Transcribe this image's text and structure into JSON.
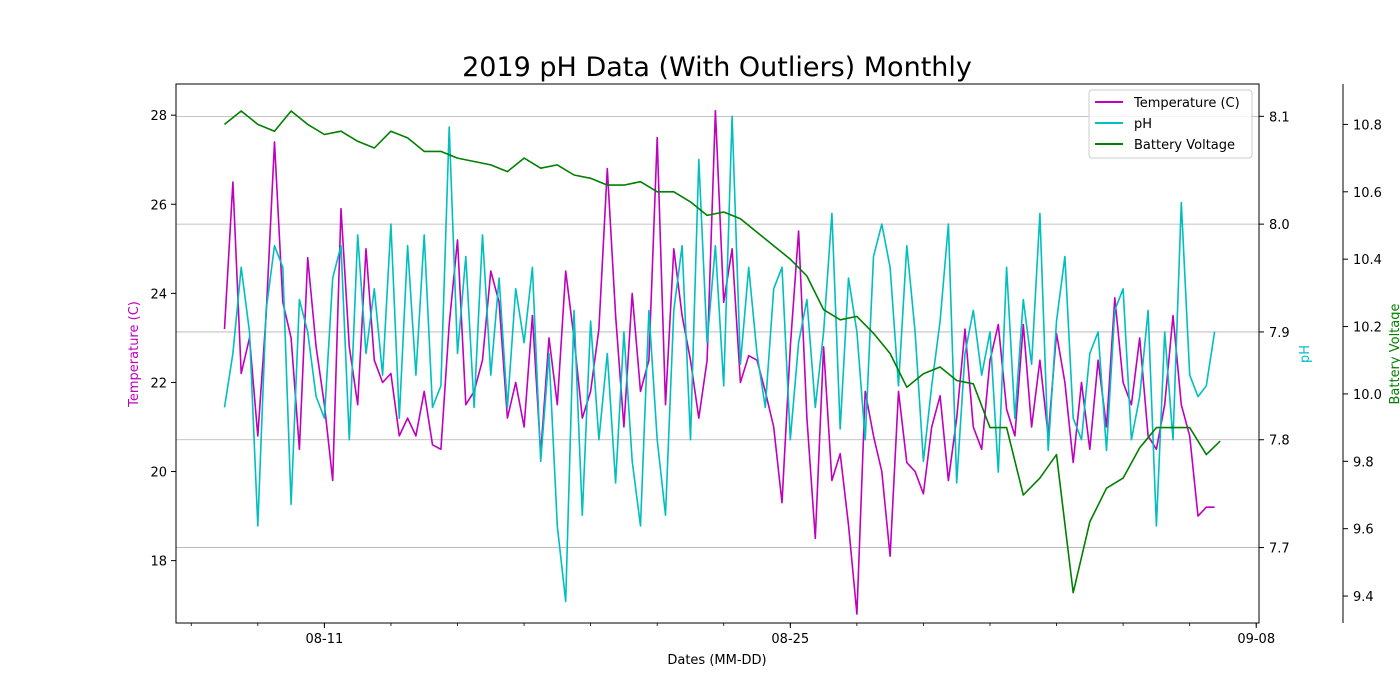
{
  "chart_data": {
    "type": "line",
    "title": "2019 pH Data (With Outliers) Monthly",
    "xlabel": "Dates (MM-DD)",
    "ylabel_left": "Temperature (C)",
    "ylabel_right": "pH",
    "ylabel_right2": "Battery Voltage",
    "xlim": [
      "2019-08-06T13:00",
      "2019-09-08T02:00"
    ],
    "ylim_temperature": [
      16.6,
      28.7
    ],
    "ylim_ph": [
      7.63,
      8.13
    ],
    "ylim_battery": [
      9.32,
      10.92
    ],
    "x_ticks": [
      {
        "x": "2019-08-11",
        "label": "08-11"
      },
      {
        "x": "2019-08-25",
        "label": "08-25"
      },
      {
        "x": "2019-09-08",
        "label": "09-08"
      }
    ],
    "y_ticks_temperature": [
      18,
      20,
      22,
      24,
      26,
      28
    ],
    "y_ticks_ph": [
      7.7,
      7.8,
      7.9,
      8.0,
      8.1
    ],
    "y_ticks_battery": [
      9.4,
      9.6,
      9.8,
      10.0,
      10.2,
      10.4,
      10.6,
      10.8
    ],
    "grid": "horizontal",
    "legend_placement": "upper right",
    "series": [
      {
        "name": "Temperature (C)",
        "axis": "temperature",
        "color": "#bf00bf",
        "x": [
          "2019-08-08T00:00",
          "2019-08-08T06:00",
          "2019-08-08T12:00",
          "2019-08-08T18:00",
          "2019-08-09T00:00",
          "2019-08-09T06:00",
          "2019-08-09T12:00",
          "2019-08-09T18:00",
          "2019-08-10T00:00",
          "2019-08-10T06:00",
          "2019-08-10T12:00",
          "2019-08-10T18:00",
          "2019-08-11T00:00",
          "2019-08-11T06:00",
          "2019-08-11T12:00",
          "2019-08-11T18:00",
          "2019-08-12T00:00",
          "2019-08-12T06:00",
          "2019-08-12T12:00",
          "2019-08-12T18:00",
          "2019-08-13T00:00",
          "2019-08-13T06:00",
          "2019-08-13T12:00",
          "2019-08-13T18:00",
          "2019-08-14T00:00",
          "2019-08-14T06:00",
          "2019-08-14T12:00",
          "2019-08-14T18:00",
          "2019-08-15T00:00",
          "2019-08-15T06:00",
          "2019-08-15T12:00",
          "2019-08-15T18:00",
          "2019-08-16T00:00",
          "2019-08-16T06:00",
          "2019-08-16T12:00",
          "2019-08-16T18:00",
          "2019-08-17T00:00",
          "2019-08-17T06:00",
          "2019-08-17T12:00",
          "2019-08-17T18:00",
          "2019-08-18T00:00",
          "2019-08-18T06:00",
          "2019-08-18T12:00",
          "2019-08-18T18:00",
          "2019-08-19T00:00",
          "2019-08-19T06:00",
          "2019-08-19T12:00",
          "2019-08-19T18:00",
          "2019-08-20T00:00",
          "2019-08-20T06:00",
          "2019-08-20T12:00",
          "2019-08-20T18:00",
          "2019-08-21T00:00",
          "2019-08-21T06:00",
          "2019-08-21T12:00",
          "2019-08-21T18:00",
          "2019-08-22T00:00",
          "2019-08-22T06:00",
          "2019-08-22T12:00",
          "2019-08-22T18:00",
          "2019-08-23T00:00",
          "2019-08-23T06:00",
          "2019-08-23T12:00",
          "2019-08-23T18:00",
          "2019-08-24T00:00",
          "2019-08-24T06:00",
          "2019-08-24T12:00",
          "2019-08-24T18:00",
          "2019-08-25T00:00",
          "2019-08-25T06:00",
          "2019-08-25T12:00",
          "2019-08-25T18:00",
          "2019-08-26T00:00",
          "2019-08-26T06:00",
          "2019-08-26T12:00",
          "2019-08-26T18:00",
          "2019-08-27T00:00",
          "2019-08-27T06:00",
          "2019-08-27T12:00",
          "2019-08-27T18:00",
          "2019-08-28T00:00",
          "2019-08-28T06:00",
          "2019-08-28T12:00",
          "2019-08-28T18:00",
          "2019-08-29T00:00",
          "2019-08-29T06:00",
          "2019-08-29T12:00",
          "2019-08-29T18:00",
          "2019-08-30T00:00",
          "2019-08-30T06:00",
          "2019-08-30T12:00",
          "2019-08-30T18:00",
          "2019-08-31T00:00",
          "2019-08-31T06:00",
          "2019-08-31T12:00",
          "2019-08-31T18:00",
          "2019-09-01T00:00",
          "2019-09-01T06:00",
          "2019-09-01T12:00",
          "2019-09-01T18:00",
          "2019-09-02T00:00",
          "2019-09-02T06:00",
          "2019-09-02T12:00",
          "2019-09-02T18:00",
          "2019-09-03T00:00",
          "2019-09-03T06:00",
          "2019-09-03T12:00",
          "2019-09-03T18:00",
          "2019-09-04T00:00",
          "2019-09-04T06:00",
          "2019-09-04T12:00",
          "2019-09-04T18:00",
          "2019-09-05T00:00",
          "2019-09-05T06:00",
          "2019-09-05T12:00",
          "2019-09-05T18:00",
          "2019-09-06T00:00",
          "2019-09-06T06:00",
          "2019-09-06T12:00",
          "2019-09-06T18:00"
        ],
        "values": [
          23.2,
          26.5,
          22.2,
          23.0,
          20.8,
          23.5,
          27.4,
          23.8,
          23.0,
          20.5,
          24.8,
          22.8,
          21.5,
          19.8,
          25.9,
          22.8,
          21.5,
          25.0,
          22.5,
          22.0,
          22.2,
          20.8,
          21.2,
          20.8,
          21.8,
          20.6,
          20.5,
          23.3,
          25.2,
          21.5,
          21.8,
          22.5,
          24.5,
          23.8,
          21.2,
          22.0,
          21.0,
          23.5,
          20.4,
          23.0,
          21.5,
          24.5,
          23.0,
          21.2,
          21.8,
          23.2,
          26.8,
          23.5,
          21.0,
          24.0,
          21.8,
          22.5,
          27.5,
          21.5,
          25.0,
          23.5,
          22.5,
          21.2,
          22.5,
          28.1,
          23.8,
          25.0,
          22.0,
          22.6,
          22.5,
          21.8,
          21.0,
          19.3,
          22.8,
          25.4,
          21.2,
          18.5,
          22.8,
          19.8,
          20.4,
          18.8,
          16.8,
          21.8,
          20.8,
          20.0,
          18.1,
          21.8,
          20.2,
          20.0,
          19.5,
          21.0,
          21.7,
          19.8,
          21.2,
          23.2,
          21.0,
          20.5,
          22.5,
          23.3,
          21.4,
          20.8,
          23.3,
          21.0,
          22.5,
          20.8,
          23.1,
          22.0,
          20.2,
          22.0,
          20.5,
          22.5,
          21.0,
          23.9,
          22.0,
          21.5,
          23.0,
          20.8,
          20.5,
          21.5,
          23.5,
          21.5,
          20.8,
          19.0,
          19.2,
          19.2
        ]
      },
      {
        "name": "pH",
        "axis": "ph",
        "color": "#00bfbf",
        "x": [
          "2019-08-08T00:00",
          "2019-08-08T06:00",
          "2019-08-08T12:00",
          "2019-08-08T18:00",
          "2019-08-09T00:00",
          "2019-08-09T06:00",
          "2019-08-09T12:00",
          "2019-08-09T18:00",
          "2019-08-10T00:00",
          "2019-08-10T06:00",
          "2019-08-10T12:00",
          "2019-08-10T18:00",
          "2019-08-11T00:00",
          "2019-08-11T06:00",
          "2019-08-11T12:00",
          "2019-08-11T18:00",
          "2019-08-12T00:00",
          "2019-08-12T06:00",
          "2019-08-12T12:00",
          "2019-08-12T18:00",
          "2019-08-13T00:00",
          "2019-08-13T06:00",
          "2019-08-13T12:00",
          "2019-08-13T18:00",
          "2019-08-14T00:00",
          "2019-08-14T06:00",
          "2019-08-14T12:00",
          "2019-08-14T18:00",
          "2019-08-15T00:00",
          "2019-08-15T06:00",
          "2019-08-15T12:00",
          "2019-08-15T18:00",
          "2019-08-16T00:00",
          "2019-08-16T06:00",
          "2019-08-16T12:00",
          "2019-08-16T18:00",
          "2019-08-17T00:00",
          "2019-08-17T06:00",
          "2019-08-17T12:00",
          "2019-08-17T18:00",
          "2019-08-18T00:00",
          "2019-08-18T06:00",
          "2019-08-18T12:00",
          "2019-08-18T18:00",
          "2019-08-19T00:00",
          "2019-08-19T06:00",
          "2019-08-19T12:00",
          "2019-08-19T18:00",
          "2019-08-20T00:00",
          "2019-08-20T06:00",
          "2019-08-20T12:00",
          "2019-08-20T18:00",
          "2019-08-21T00:00",
          "2019-08-21T06:00",
          "2019-08-21T12:00",
          "2019-08-21T18:00",
          "2019-08-22T00:00",
          "2019-08-22T06:00",
          "2019-08-22T12:00",
          "2019-08-22T18:00",
          "2019-08-23T00:00",
          "2019-08-23T06:00",
          "2019-08-23T12:00",
          "2019-08-23T18:00",
          "2019-08-24T00:00",
          "2019-08-24T06:00",
          "2019-08-24T12:00",
          "2019-08-24T18:00",
          "2019-08-25T00:00",
          "2019-08-25T06:00",
          "2019-08-25T12:00",
          "2019-08-25T18:00",
          "2019-08-26T00:00",
          "2019-08-26T06:00",
          "2019-08-26T12:00",
          "2019-08-26T18:00",
          "2019-08-27T00:00",
          "2019-08-27T06:00",
          "2019-08-27T12:00",
          "2019-08-27T18:00",
          "2019-08-28T00:00",
          "2019-08-28T06:00",
          "2019-08-28T12:00",
          "2019-08-28T18:00",
          "2019-08-29T00:00",
          "2019-08-29T06:00",
          "2019-08-29T12:00",
          "2019-08-29T18:00",
          "2019-08-30T00:00",
          "2019-08-30T06:00",
          "2019-08-30T12:00",
          "2019-08-30T18:00",
          "2019-08-31T00:00",
          "2019-08-31T06:00",
          "2019-08-31T12:00",
          "2019-08-31T18:00",
          "2019-09-01T00:00",
          "2019-09-01T06:00",
          "2019-09-01T12:00",
          "2019-09-01T18:00",
          "2019-09-02T00:00",
          "2019-09-02T06:00",
          "2019-09-02T12:00",
          "2019-09-02T18:00",
          "2019-09-03T00:00",
          "2019-09-03T06:00",
          "2019-09-03T12:00",
          "2019-09-03T18:00",
          "2019-09-04T00:00",
          "2019-09-04T06:00",
          "2019-09-04T12:00",
          "2019-09-04T18:00",
          "2019-09-05T00:00",
          "2019-09-05T06:00",
          "2019-09-05T12:00",
          "2019-09-05T18:00",
          "2019-09-06T00:00",
          "2019-09-06T06:00",
          "2019-09-06T12:00",
          "2019-09-06T18:00"
        ],
        "values": [
          7.83,
          7.88,
          7.96,
          7.9,
          7.72,
          7.92,
          7.98,
          7.96,
          7.74,
          7.93,
          7.9,
          7.84,
          7.82,
          7.95,
          7.98,
          7.8,
          7.99,
          7.88,
          7.94,
          7.86,
          8.0,
          7.82,
          7.98,
          7.86,
          7.99,
          7.83,
          7.85,
          8.09,
          7.88,
          7.97,
          7.83,
          7.99,
          7.86,
          7.95,
          7.83,
          7.94,
          7.89,
          7.96,
          7.78,
          7.88,
          7.72,
          7.65,
          7.92,
          7.73,
          7.91,
          7.8,
          7.88,
          7.76,
          7.9,
          7.78,
          7.72,
          7.92,
          7.8,
          7.73,
          7.92,
          7.98,
          7.8,
          8.06,
          7.89,
          7.98,
          7.85,
          8.1,
          7.87,
          7.96,
          7.88,
          7.83,
          7.94,
          7.96,
          7.8,
          7.89,
          7.93,
          7.83,
          7.9,
          8.01,
          7.81,
          7.95,
          7.9,
          7.8,
          7.97,
          8.0,
          7.96,
          7.85,
          7.98,
          7.9,
          7.78,
          7.85,
          7.91,
          8.0,
          7.76,
          7.88,
          7.92,
          7.86,
          7.9,
          7.77,
          7.96,
          7.82,
          7.93,
          7.87,
          8.01,
          7.79,
          7.91,
          7.97,
          7.82,
          7.8,
          7.88,
          7.9,
          7.79,
          7.92,
          7.94,
          7.8,
          7.84,
          7.92,
          7.72,
          7.9,
          7.8,
          8.02,
          7.86,
          7.84,
          7.85,
          7.9
        ]
      },
      {
        "name": "Battery Voltage",
        "axis": "battery",
        "color": "#008000",
        "x": [
          "2019-08-08T00:00",
          "2019-08-08T12:00",
          "2019-08-09T00:00",
          "2019-08-09T12:00",
          "2019-08-10T00:00",
          "2019-08-10T12:00",
          "2019-08-11T00:00",
          "2019-08-11T12:00",
          "2019-08-12T00:00",
          "2019-08-12T12:00",
          "2019-08-13T00:00",
          "2019-08-13T12:00",
          "2019-08-14T00:00",
          "2019-08-14T12:00",
          "2019-08-15T00:00",
          "2019-08-15T12:00",
          "2019-08-16T00:00",
          "2019-08-16T12:00",
          "2019-08-17T00:00",
          "2019-08-17T12:00",
          "2019-08-18T00:00",
          "2019-08-18T12:00",
          "2019-08-19T00:00",
          "2019-08-19T12:00",
          "2019-08-20T00:00",
          "2019-08-20T12:00",
          "2019-08-21T00:00",
          "2019-08-21T12:00",
          "2019-08-22T00:00",
          "2019-08-22T12:00",
          "2019-08-23T00:00",
          "2019-08-23T12:00",
          "2019-08-24T00:00",
          "2019-08-24T12:00",
          "2019-08-25T00:00",
          "2019-08-25T12:00",
          "2019-08-26T00:00",
          "2019-08-26T12:00",
          "2019-08-27T00:00",
          "2019-08-27T12:00",
          "2019-08-28T00:00",
          "2019-08-28T12:00",
          "2019-08-29T00:00",
          "2019-08-29T12:00",
          "2019-08-30T00:00",
          "2019-08-30T12:00",
          "2019-08-31T00:00",
          "2019-08-31T12:00",
          "2019-09-01T00:00",
          "2019-09-01T12:00",
          "2019-09-02T00:00",
          "2019-09-02T12:00",
          "2019-09-03T00:00",
          "2019-09-03T12:00",
          "2019-09-04T00:00",
          "2019-09-04T12:00",
          "2019-09-05T00:00",
          "2019-09-05T12:00",
          "2019-09-06T00:00",
          "2019-09-06T12:00",
          "2019-09-06T22:00"
        ],
        "values": [
          10.8,
          10.84,
          10.8,
          10.78,
          10.84,
          10.8,
          10.77,
          10.78,
          10.75,
          10.73,
          10.78,
          10.76,
          10.72,
          10.72,
          10.7,
          10.69,
          10.68,
          10.66,
          10.7,
          10.67,
          10.68,
          10.65,
          10.64,
          10.62,
          10.62,
          10.63,
          10.6,
          10.6,
          10.57,
          10.53,
          10.54,
          10.52,
          10.48,
          10.44,
          10.4,
          10.35,
          10.25,
          10.22,
          10.23,
          10.18,
          10.12,
          10.02,
          10.06,
          10.08,
          10.04,
          10.03,
          9.9,
          9.9,
          9.7,
          9.75,
          9.82,
          9.41,
          9.62,
          9.72,
          9.75,
          9.84,
          9.9,
          9.9,
          9.9,
          9.82,
          9.86
        ]
      }
    ]
  }
}
